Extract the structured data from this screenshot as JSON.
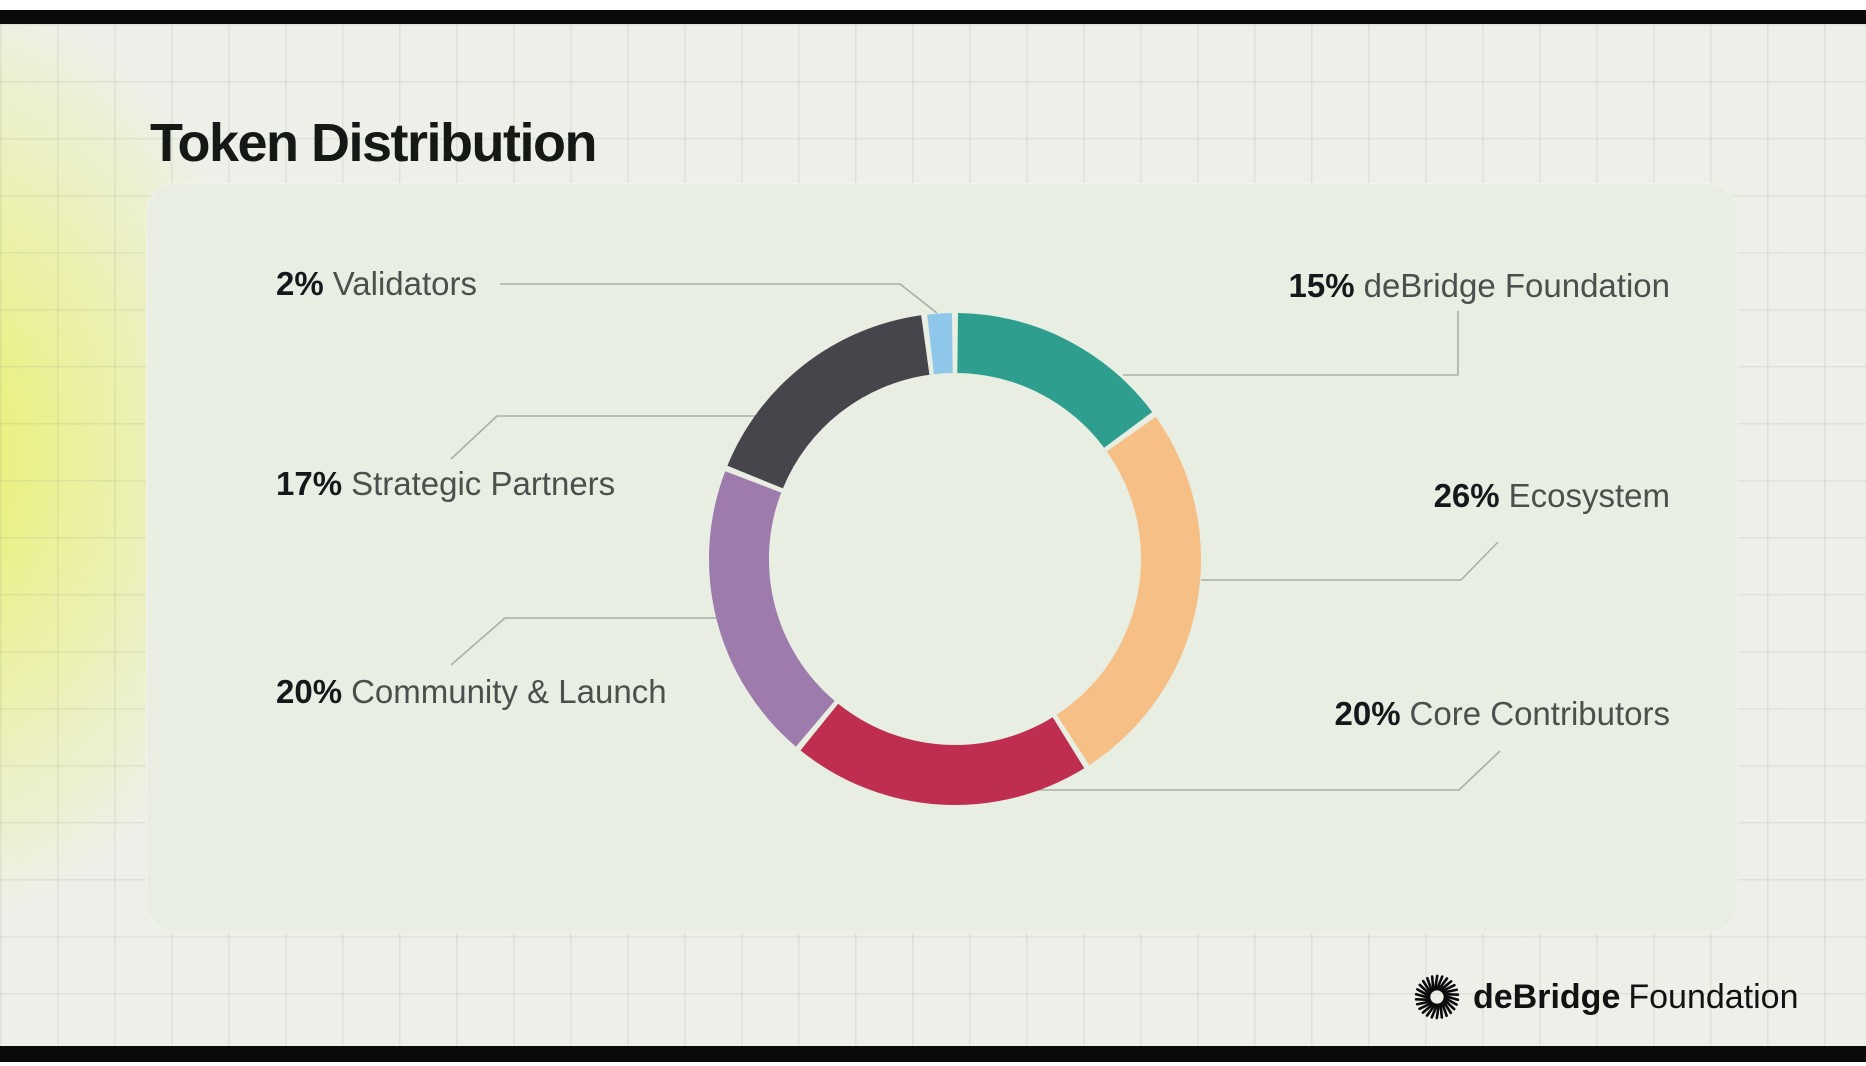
{
  "page": {
    "title": "Token Distribution"
  },
  "chart_data": {
    "type": "pie",
    "variant": "donut",
    "title": "Token Distribution",
    "start_angle_deg": 0,
    "direction": "clockwise",
    "total": 100,
    "legend_position": "callout-labels",
    "segments": [
      {
        "label": "deBridge Foundation",
        "value": 15,
        "pct_text": "15%",
        "color": "#2e9e8e",
        "label_side": "right"
      },
      {
        "label": "Ecosystem",
        "value": 26,
        "pct_text": "26%",
        "color": "#f6bf85",
        "label_side": "right"
      },
      {
        "label": "Core Contributors",
        "value": 20,
        "pct_text": "20%",
        "color": "#bf2e4f",
        "label_side": "right"
      },
      {
        "label": "Community & Launch",
        "value": 20,
        "pct_text": "20%",
        "color": "#9d7cad",
        "label_side": "left"
      },
      {
        "label": "Strategic Partners",
        "value": 17,
        "pct_text": "17%",
        "color": "#45454b",
        "label_side": "left"
      },
      {
        "label": "Validators",
        "value": 2,
        "pct_text": "2%",
        "color": "#8ec7e9",
        "label_side": "left"
      }
    ]
  },
  "brand": {
    "name_bold": "deBridge",
    "name_rest": "Foundation"
  },
  "colors": {
    "background": "#edf0e8",
    "card": "#e9eee3",
    "accent_glow": "#e9f046",
    "edge_bar": "#0a0a0a",
    "connector_line": "#a0a89f",
    "pct_text": "#15191c",
    "label_text": "#4a514c"
  }
}
